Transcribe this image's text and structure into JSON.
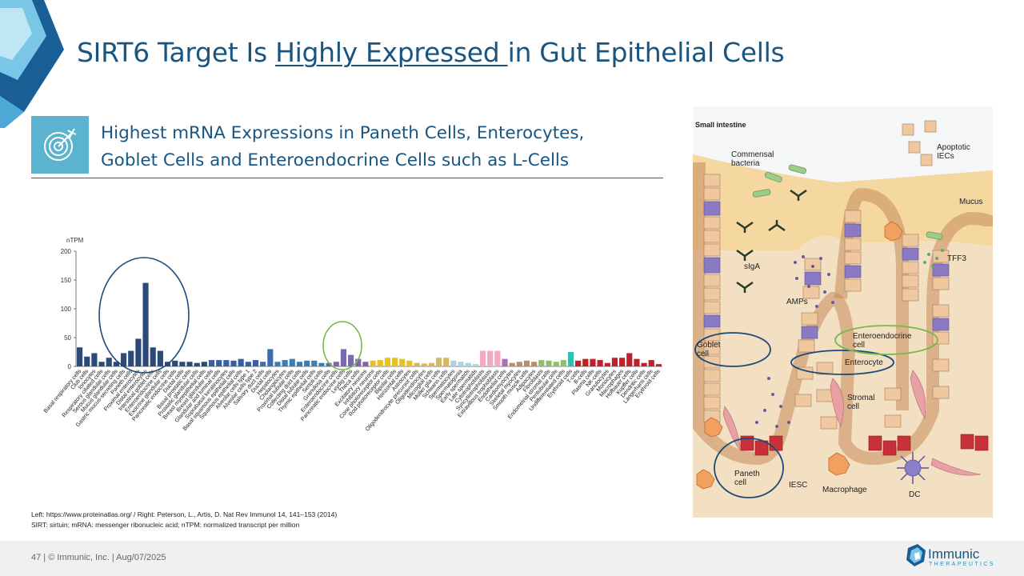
{
  "title": {
    "pre": "SIRT6 Target Is ",
    "underlined": "Highly Expressed ",
    "post": "in Gut Epithelial Cells"
  },
  "subtitle": {
    "line1": "Highest mRNA Expressions in Paneth Cells, Enterocytes,",
    "line2": "Goblet Cells and Enteroendocrine Cells such as L-Cells"
  },
  "icons": {
    "target": "target-arrow-icon",
    "logo": "immunic-logo-icon"
  },
  "chart_data": {
    "type": "bar",
    "ylabel": "nTPM",
    "ylim": [
      0,
      200
    ],
    "yticks": [
      0,
      50,
      100,
      150,
      200
    ],
    "annotations": [
      "blue circle: Paneth cells region",
      "green circle: Leydig cells region"
    ],
    "bars": [
      {
        "label": "Basal respiratory cells",
        "value": 33,
        "color": "#2c4a78"
      },
      {
        "label": "Club cells",
        "value": 17,
        "color": "#2c4a78"
      },
      {
        "label": "Ionocytes",
        "value": 23,
        "color": "#2c4a78"
      },
      {
        "label": "Respiratory ciliated cells",
        "value": 8,
        "color": "#2c4a78"
      },
      {
        "label": "Serous glandular cells",
        "value": 15,
        "color": "#2c4a78"
      },
      {
        "label": "Mucus glandular cells",
        "value": 8,
        "color": "#2c4a78"
      },
      {
        "label": "Gastric mucus-secreting cells",
        "value": 23,
        "color": "#2c4a78"
      },
      {
        "label": "Paneth cells",
        "value": 27,
        "color": "#2c4a78"
      },
      {
        "label": "Proximal enterocytes",
        "value": 48,
        "color": "#2c4a78"
      },
      {
        "label": "Distal enterocytes",
        "value": 145,
        "color": "#2c4a78"
      },
      {
        "label": "Intestinal goblet cells",
        "value": 33,
        "color": "#2c4a78"
      },
      {
        "label": "Enteroendocrine cells",
        "value": 27,
        "color": "#2c4a78"
      },
      {
        "label": "Exocrine glandular cells",
        "value": 8,
        "color": "#2c4a78"
      },
      {
        "label": "Pancreatic endocrine cells",
        "value": 10,
        "color": "#2c4a78"
      },
      {
        "label": "Ductal cells",
        "value": 8,
        "color": "#2c4a78"
      },
      {
        "label": "Basal prostatic cells",
        "value": 8,
        "color": "#2c4a78"
      },
      {
        "label": "Prostatic glandular cells",
        "value": 6,
        "color": "#2c4a78"
      },
      {
        "label": "Breast myoepithelial cells",
        "value": 8,
        "color": "#2c4a78"
      },
      {
        "label": "Breast glandular cells",
        "value": 11,
        "color": "#3a5f9e"
      },
      {
        "label": "Glandular and luminal cells",
        "value": 11,
        "color": "#3a5f9e"
      },
      {
        "label": "Suprabasal keratinocytes",
        "value": 11,
        "color": "#3a5f9e"
      },
      {
        "label": "Basal squamous epithelial cells",
        "value": 10,
        "color": "#3a5f9e"
      },
      {
        "label": "Squamous epithelial cells",
        "value": 13,
        "color": "#3a5f9e"
      },
      {
        "label": "Alveolar cells type 1",
        "value": 8,
        "color": "#3a5f9e"
      },
      {
        "label": "Alveolar cells type 2",
        "value": 11,
        "color": "#3a5f9e"
      },
      {
        "label": "Salivary duct cells",
        "value": 8,
        "color": "#3a6fa8"
      },
      {
        "label": "Ductal cells",
        "value": 30,
        "color": "#3a6fa8"
      },
      {
        "label": "Hepatocytes",
        "value": 8,
        "color": "#3a7fb4"
      },
      {
        "label": "Cholangiocytes",
        "value": 11,
        "color": "#3a7fb4"
      },
      {
        "label": "Proximal tubular cells",
        "value": 13,
        "color": "#3a7fb4"
      },
      {
        "label": "Collecting duct cells",
        "value": 8,
        "color": "#3a7fb4"
      },
      {
        "label": "Distal tubular cells",
        "value": 10,
        "color": "#3a7fb4"
      },
      {
        "label": "Thymic epithelial cells",
        "value": 10,
        "color": "#3a7fb4"
      },
      {
        "label": "Sertoli cells",
        "value": 6,
        "color": "#3a7fb4"
      },
      {
        "label": "Granulosa cells",
        "value": 6,
        "color": "#5a6fae"
      },
      {
        "label": "Enteroendocrine cells",
        "value": 8,
        "color": "#7a69b0"
      },
      {
        "label": "Pancreatic endocrine cells",
        "value": 30,
        "color": "#7a69b0"
      },
      {
        "label": "Leydig cells",
        "value": 20,
        "color": "#7a69b0"
      },
      {
        "label": "Theca cells",
        "value": 13,
        "color": "#7a69b0"
      },
      {
        "label": "Excitatory neurons",
        "value": 8,
        "color": "#7a69b0"
      },
      {
        "label": "Inhibitory neurons",
        "value": 10,
        "color": "#e8c020"
      },
      {
        "label": "Cone photoreceptor cells",
        "value": 11,
        "color": "#e8c020"
      },
      {
        "label": "Rod photoreceptor cells",
        "value": 15,
        "color": "#e8c020"
      },
      {
        "label": "Bipolar cells",
        "value": 15,
        "color": "#e8c020"
      },
      {
        "label": "Horizontal cells",
        "value": 13,
        "color": "#e8c020"
      },
      {
        "label": "Astrocytes",
        "value": 10,
        "color": "#e8c020"
      },
      {
        "label": "Oligodendrocyte precursor cells",
        "value": 6,
        "color": "#d4b862"
      },
      {
        "label": "Oligodendrocytes",
        "value": 5,
        "color": "#d4b862"
      },
      {
        "label": "Microglial cells",
        "value": 6,
        "color": "#d4b862"
      },
      {
        "label": "Müller glia cells",
        "value": 15,
        "color": "#d4b862"
      },
      {
        "label": "Schwann cells",
        "value": 15,
        "color": "#d4b862"
      },
      {
        "label": "Spermatocytes",
        "value": 10,
        "color": "#a8d4e4"
      },
      {
        "label": "Spermatogonia",
        "value": 8,
        "color": "#a8d4e4"
      },
      {
        "label": "Early spermatids",
        "value": 6,
        "color": "#a8d4e4"
      },
      {
        "label": "Late spermatids",
        "value": 4,
        "color": "#a8d4e4"
      },
      {
        "label": "Cytotrophoblasts",
        "value": 27,
        "color": "#f4a8c4"
      },
      {
        "label": "Syncytiotrophoblasts",
        "value": 27,
        "color": "#f4a8c4"
      },
      {
        "label": "Extravillous trophoblasts",
        "value": 27,
        "color": "#f4a8c4"
      },
      {
        "label": "Endothelial cells",
        "value": 13,
        "color": "#b070b0"
      },
      {
        "label": "Cardiomyocytes",
        "value": 6,
        "color": "#b58f6a"
      },
      {
        "label": "Skeletal myocytes",
        "value": 8,
        "color": "#b58f6a"
      },
      {
        "label": "Smooth muscle cells",
        "value": 10,
        "color": "#b58f6a"
      },
      {
        "label": "Adipocytes",
        "value": 8,
        "color": "#b58f6a"
      },
      {
        "label": "Fibroblasts",
        "value": 11,
        "color": "#8dc06a"
      },
      {
        "label": "Endometrial stromal cells",
        "value": 10,
        "color": "#8dc06a"
      },
      {
        "label": "Peritubular cells",
        "value": 8,
        "color": "#8dc06a"
      },
      {
        "label": "Undifferentiated cells",
        "value": 11,
        "color": "#8dc06a"
      },
      {
        "label": "Erythroid cells",
        "value": 25,
        "color": "#30c0b0"
      },
      {
        "label": "T-cells",
        "value": 10,
        "color": "#c0202a"
      },
      {
        "label": "B-cells",
        "value": 13,
        "color": "#c0202a"
      },
      {
        "label": "Plasma cells",
        "value": 13,
        "color": "#c0202a"
      },
      {
        "label": "NK-cells",
        "value": 11,
        "color": "#c0202a"
      },
      {
        "label": "Granulocytes",
        "value": 6,
        "color": "#c0202a"
      },
      {
        "label": "Monocytes",
        "value": 15,
        "color": "#c0202a"
      },
      {
        "label": "Macrophages",
        "value": 15,
        "color": "#c0202a"
      },
      {
        "label": "Hofbauer cells",
        "value": 23,
        "color": "#c0202a"
      },
      {
        "label": "Kupffer cells",
        "value": 13,
        "color": "#c0202a"
      },
      {
        "label": "Dendritic cells",
        "value": 6,
        "color": "#c0202a"
      },
      {
        "label": "Langerhans cells",
        "value": 11,
        "color": "#c0202a"
      },
      {
        "label": "Erythroid cells",
        "value": 4,
        "color": "#c0202a"
      }
    ]
  },
  "figure": {
    "title": "Small intestine",
    "labels": {
      "commensal": "Commensal\nbacteria",
      "apoptotic": "Apoptotic\nIECs",
      "mucus": "Mucus",
      "tff3": "TFF3",
      "sigA": "sIgA",
      "amps": "AMPs",
      "goblet": "Goblet\ncell",
      "enteroendocrine": "Enteroendocrine\ncell",
      "enterocyte": "Enterocyte",
      "stromal": "Stromal\ncell",
      "paneth": "Paneth\ncell",
      "iesc": "IESC",
      "macrophage": "Macrophage",
      "dc": "DC"
    }
  },
  "footnotes": {
    "line1": "Left: https://www.proteinatlas.org/ / Right: Peterson, L., Artis, D. Nat Rev Immunol 14, 141–153 (2014)",
    "line2": "SIRT: sirtuin; mRNA: messenger ribonucleic acid; nTPM: normalized transcript per million"
  },
  "footer": {
    "text": "47   |  © Immunic, Inc.  | Aug/07/2025"
  },
  "logo": {
    "name": "Immunic",
    "sub": "THERAPEUTICS"
  }
}
